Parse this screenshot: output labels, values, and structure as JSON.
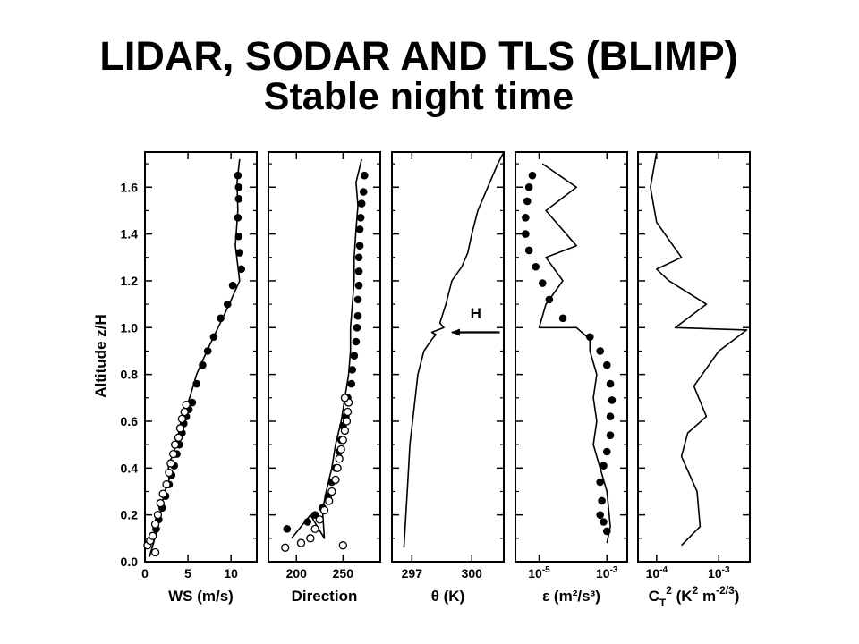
{
  "slide": {
    "title": "LIDAR, SODAR AND TLS (BLIMP)",
    "subtitle": "Stable night time"
  },
  "chart_data": {
    "type": "line",
    "ylabel": "Altitude z/H",
    "ylim": [
      0.0,
      1.75
    ],
    "yticks": [
      0.0,
      0.2,
      0.4,
      0.6,
      0.8,
      1.0,
      1.2,
      1.4,
      1.6
    ],
    "ytick_labels": [
      "0.0",
      "0.2",
      "0.4",
      "0.6",
      "0.8",
      "1.0",
      "1.2",
      "1.4",
      "1.6"
    ],
    "panels": [
      {
        "id": "ws",
        "xlabel": "WS (m/s)",
        "scale": "linear",
        "xlim": [
          0,
          13
        ],
        "xticks": [
          0,
          5,
          10
        ],
        "xtick_labels": [
          "0",
          "5",
          "10"
        ],
        "line": [
          [
            0.5,
            0.02
          ],
          [
            1.0,
            0.08
          ],
          [
            1.5,
            0.15
          ],
          [
            1.8,
            0.2
          ],
          [
            2.0,
            0.25
          ],
          [
            2.3,
            0.3
          ],
          [
            2.8,
            0.35
          ],
          [
            2.7,
            0.42
          ],
          [
            3.2,
            0.45
          ],
          [
            3.8,
            0.52
          ],
          [
            4.0,
            0.58
          ],
          [
            4.6,
            0.62
          ],
          [
            4.8,
            0.66
          ],
          [
            5.2,
            0.7
          ],
          [
            6.0,
            0.8
          ],
          [
            7.2,
            0.9
          ],
          [
            8.5,
            1.0
          ],
          [
            9.8,
            1.1
          ],
          [
            11.0,
            1.2
          ],
          [
            10.5,
            1.35
          ],
          [
            10.8,
            1.5
          ],
          [
            10.7,
            1.62
          ],
          [
            11.0,
            1.72
          ]
        ],
        "filled_points": [
          [
            1.3,
            0.14
          ],
          [
            1.6,
            0.18
          ],
          [
            2.0,
            0.23
          ],
          [
            2.4,
            0.28
          ],
          [
            2.8,
            0.33
          ],
          [
            3.1,
            0.37
          ],
          [
            3.4,
            0.41
          ],
          [
            3.7,
            0.46
          ],
          [
            4.0,
            0.5
          ],
          [
            4.3,
            0.55
          ],
          [
            4.5,
            0.59
          ],
          [
            4.8,
            0.62
          ],
          [
            5.1,
            0.65
          ],
          [
            5.5,
            0.68
          ],
          [
            6.0,
            0.76
          ],
          [
            6.7,
            0.84
          ],
          [
            7.3,
            0.9
          ],
          [
            8.0,
            0.96
          ],
          [
            8.8,
            1.04
          ],
          [
            9.6,
            1.1
          ],
          [
            10.2,
            1.18
          ],
          [
            11.2,
            1.25
          ],
          [
            11.0,
            1.32
          ],
          [
            10.9,
            1.39
          ],
          [
            10.8,
            1.47
          ],
          [
            10.9,
            1.55
          ],
          [
            10.9,
            1.6
          ],
          [
            10.8,
            1.65
          ]
        ],
        "open_points": [
          [
            0.3,
            0.07
          ],
          [
            0.6,
            0.09
          ],
          [
            0.9,
            0.11
          ],
          [
            1.2,
            0.16
          ],
          [
            1.5,
            0.2
          ],
          [
            1.8,
            0.25
          ],
          [
            2.1,
            0.29
          ],
          [
            2.5,
            0.33
          ],
          [
            2.8,
            0.38
          ],
          [
            3.0,
            0.42
          ],
          [
            3.3,
            0.46
          ],
          [
            3.5,
            0.5
          ],
          [
            3.9,
            0.53
          ],
          [
            4.1,
            0.57
          ],
          [
            4.3,
            0.61
          ],
          [
            4.6,
            0.64
          ],
          [
            4.8,
            0.67
          ],
          [
            1.2,
            0.04
          ]
        ]
      },
      {
        "id": "dir",
        "xlabel": "Direction",
        "scale": "linear",
        "xlim": [
          170,
          290
        ],
        "xticks": [
          200,
          250
        ],
        "xtick_labels": [
          "200",
          "250"
        ],
        "line": [
          [
            195,
            0.1
          ],
          [
            215,
            0.2
          ],
          [
            230,
            0.1
          ],
          [
            228,
            0.22
          ],
          [
            232,
            0.3
          ],
          [
            238,
            0.4
          ],
          [
            242,
            0.5
          ],
          [
            248,
            0.6
          ],
          [
            252,
            0.7
          ],
          [
            256,
            0.8
          ],
          [
            258,
            0.9
          ],
          [
            258,
            1.0
          ],
          [
            260,
            1.1
          ],
          [
            262,
            1.2
          ],
          [
            262,
            1.3
          ],
          [
            264,
            1.42
          ],
          [
            266,
            1.52
          ],
          [
            264,
            1.62
          ],
          [
            270,
            1.72
          ]
        ],
        "filled_points": [
          [
            190,
            0.14
          ],
          [
            212,
            0.17
          ],
          [
            220,
            0.2
          ],
          [
            228,
            0.23
          ],
          [
            234,
            0.28
          ],
          [
            238,
            0.34
          ],
          [
            242,
            0.4
          ],
          [
            246,
            0.47
          ],
          [
            248,
            0.52
          ],
          [
            250,
            0.58
          ],
          [
            253,
            0.62
          ],
          [
            255,
            0.7
          ],
          [
            259,
            0.76
          ],
          [
            260,
            0.82
          ],
          [
            262,
            0.88
          ],
          [
            264,
            0.94
          ],
          [
            265,
            1.0
          ],
          [
            266,
            1.05
          ],
          [
            266,
            1.12
          ],
          [
            267,
            1.18
          ],
          [
            267,
            1.24
          ],
          [
            267,
            1.3
          ],
          [
            268,
            1.35
          ],
          [
            268,
            1.42
          ],
          [
            269,
            1.47
          ],
          [
            270,
            1.53
          ],
          [
            272,
            1.58
          ],
          [
            273,
            1.65
          ]
        ],
        "open_points": [
          [
            188,
            0.06
          ],
          [
            205,
            0.08
          ],
          [
            215,
            0.1
          ],
          [
            220,
            0.14
          ],
          [
            225,
            0.18
          ],
          [
            230,
            0.22
          ],
          [
            235,
            0.26
          ],
          [
            238,
            0.3
          ],
          [
            242,
            0.35
          ],
          [
            244,
            0.4
          ],
          [
            246,
            0.44
          ],
          [
            248,
            0.48
          ],
          [
            250,
            0.52
          ],
          [
            252,
            0.56
          ],
          [
            254,
            0.6
          ],
          [
            255,
            0.64
          ],
          [
            256,
            0.68
          ],
          [
            252,
            0.7
          ],
          [
            250,
            0.07
          ]
        ]
      },
      {
        "id": "theta",
        "xlabel": "θ (K)",
        "scale": "linear",
        "xlim": [
          296.0,
          301.6
        ],
        "xticks": [
          297,
          300
        ],
        "xtick_labels": [
          "297",
          "300"
        ],
        "line": [
          [
            296.6,
            0.06
          ],
          [
            296.7,
            0.2
          ],
          [
            296.8,
            0.35
          ],
          [
            296.9,
            0.5
          ],
          [
            297.1,
            0.65
          ],
          [
            297.3,
            0.8
          ],
          [
            297.6,
            0.9
          ],
          [
            298.0,
            0.95
          ],
          [
            298.2,
            0.97
          ],
          [
            298.0,
            0.98
          ],
          [
            298.6,
            1.0
          ],
          [
            298.4,
            1.02
          ],
          [
            298.7,
            1.1
          ],
          [
            299.0,
            1.2
          ],
          [
            299.5,
            1.26
          ],
          [
            299.8,
            1.32
          ],
          [
            300.0,
            1.4
          ],
          [
            300.3,
            1.5
          ],
          [
            300.8,
            1.6
          ],
          [
            301.3,
            1.7
          ],
          [
            301.6,
            1.75
          ]
        ],
        "filled_points": [],
        "open_points": []
      },
      {
        "id": "eps",
        "xlabel": "ε (m²/s³)",
        "scale": "log",
        "xlim": [
          -5.7,
          -2.4
        ],
        "xticks": [
          -5,
          -3
        ],
        "xtick_labels": [
          "10",
          "10"
        ],
        "xtick_exponents": [
          "-5",
          "-3"
        ],
        "line": [
          [
            -3.0,
            0.08
          ],
          [
            -2.9,
            0.15
          ],
          [
            -3.0,
            0.3
          ],
          [
            -3.2,
            0.4
          ],
          [
            -3.4,
            0.5
          ],
          [
            -3.3,
            0.6
          ],
          [
            -3.4,
            0.7
          ],
          [
            -3.3,
            0.8
          ],
          [
            -3.5,
            0.9
          ],
          [
            -3.5,
            0.95
          ],
          [
            -3.9,
            1.0
          ],
          [
            -5.0,
            1.0
          ],
          [
            -4.8,
            1.1
          ],
          [
            -4.3,
            1.2
          ],
          [
            -4.8,
            1.3
          ],
          [
            -3.9,
            1.35
          ],
          [
            -4.8,
            1.5
          ],
          [
            -3.9,
            1.6
          ],
          [
            -4.9,
            1.7
          ]
        ],
        "filled_points": [
          [
            -4.3,
            1.04
          ],
          [
            -4.7,
            1.12
          ],
          [
            -4.9,
            1.19
          ],
          [
            -5.1,
            1.26
          ],
          [
            -5.3,
            1.33
          ],
          [
            -5.4,
            1.4
          ],
          [
            -5.4,
            1.47
          ],
          [
            -5.35,
            1.54
          ],
          [
            -5.3,
            1.6
          ],
          [
            -5.2,
            1.65
          ],
          [
            -3.5,
            0.96
          ],
          [
            -3.2,
            0.9
          ],
          [
            -3.0,
            0.84
          ],
          [
            -2.9,
            0.76
          ],
          [
            -2.85,
            0.69
          ],
          [
            -2.9,
            0.62
          ],
          [
            -2.9,
            0.54
          ],
          [
            -3.0,
            0.47
          ],
          [
            -3.1,
            0.41
          ],
          [
            -3.2,
            0.34
          ],
          [
            -3.15,
            0.26
          ],
          [
            -3.2,
            0.2
          ],
          [
            -3.1,
            0.17
          ],
          [
            -3.0,
            0.13
          ]
        ],
        "open_points": []
      },
      {
        "id": "ct2",
        "xlabel": "C_T² (K² m^-2/3)",
        "xlabel_base": "C",
        "xlabel_sub": "T",
        "xlabel_sup": "2",
        "xlabel_rest": " (K",
        "xlabel_sup2": "2",
        "xlabel_rest2": " m",
        "xlabel_sup3": "-2/3",
        "xlabel_end": ")",
        "scale": "log",
        "xlim": [
          -4.3,
          -2.5
        ],
        "xticks": [
          -4,
          -3
        ],
        "xtick_labels": [
          "10",
          "10"
        ],
        "xtick_exponents": [
          "-4",
          "-3"
        ],
        "line": [
          [
            -3.6,
            0.07
          ],
          [
            -3.3,
            0.15
          ],
          [
            -3.35,
            0.3
          ],
          [
            -3.6,
            0.45
          ],
          [
            -3.5,
            0.55
          ],
          [
            -3.2,
            0.62
          ],
          [
            -3.4,
            0.75
          ],
          [
            -3.0,
            0.9
          ],
          [
            -2.55,
            0.99
          ],
          [
            -3.7,
            1.0
          ],
          [
            -3.2,
            1.1
          ],
          [
            -3.8,
            1.2
          ],
          [
            -4.0,
            1.25
          ],
          [
            -3.6,
            1.3
          ],
          [
            -4.0,
            1.45
          ],
          [
            -4.1,
            1.6
          ],
          [
            -4.0,
            1.75
          ]
        ],
        "filled_points": [],
        "open_points": []
      }
    ],
    "annotation": {
      "panel": "theta",
      "text": "H",
      "arrow_from": [
        301.4,
        0.98
      ],
      "arrow_to": [
        299.0,
        0.98
      ],
      "label_at": [
        300.2,
        1.04
      ]
    }
  }
}
